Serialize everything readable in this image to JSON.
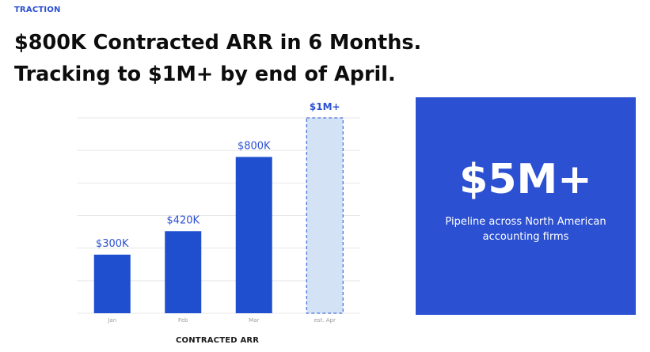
{
  "section_label": "TRACTION",
  "headline": {
    "line1": "$800K Contracted ARR in 6 Months.",
    "line2": "Tracking to $1M+ by end of April."
  },
  "chart_caption": "CONTRACTED ARR",
  "stat_panel": {
    "value": "$5M+",
    "line1": "Pipeline across North American",
    "line2": "accounting firms"
  },
  "colors": {
    "accent": "#2b50d2",
    "bar": "#1f4fcf",
    "projected_bar_fill": "#d3e3f5"
  },
  "chart_data": {
    "type": "bar",
    "categories": [
      "Jan",
      "Feb",
      "Mar",
      "est. Apr"
    ],
    "values": [
      300,
      420,
      800,
      1000
    ],
    "data_labels": [
      "$300K",
      "$420K",
      "$800K",
      "$1M+"
    ],
    "projected": [
      false,
      false,
      false,
      true
    ],
    "ylim": [
      0,
      1000
    ],
    "grid": true
  }
}
